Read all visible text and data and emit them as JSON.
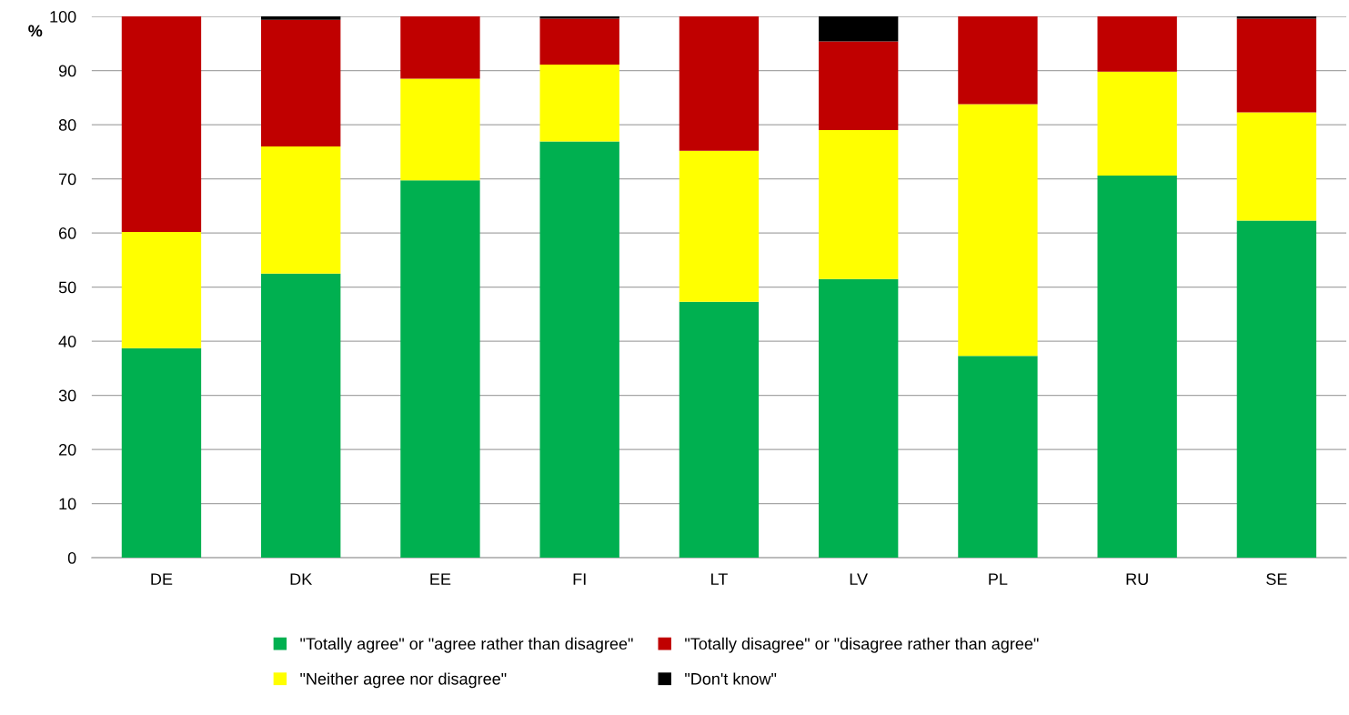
{
  "chart_data": {
    "type": "bar",
    "stacked": true,
    "ylabel": "%",
    "categories": [
      "DE",
      "DK",
      "EE",
      "FI",
      "LT",
      "LV",
      "PL",
      "RU",
      "SE"
    ],
    "series": [
      {
        "name": "\"Totally agree\" or \"agree rather than disagree\"",
        "color": "#00b050",
        "values": [
          38.7,
          52.5,
          69.7,
          76.9,
          47.3,
          51.5,
          37.3,
          70.6,
          62.3
        ]
      },
      {
        "name": "\"Neither agree nor disagree\"",
        "color": "#ffff00",
        "values": [
          21.5,
          23.5,
          18.8,
          14.2,
          27.9,
          27.5,
          46.5,
          19.2,
          20.0
        ]
      },
      {
        "name": "\"Totally disagree\" or \"disagree rather than agree\"",
        "color": "#c00000",
        "values": [
          39.8,
          23.4,
          11.5,
          8.5,
          24.8,
          16.4,
          16.2,
          10.2,
          17.3
        ]
      },
      {
        "name": "\"Don't know\"",
        "color": "#000000",
        "values": [
          0,
          0.6,
          0,
          0.4,
          0,
          4.6,
          0,
          0,
          0.4
        ]
      }
    ],
    "ylim": [
      0,
      100
    ],
    "yticks": [
      0,
      10,
      20,
      30,
      40,
      50,
      60,
      70,
      80,
      90,
      100
    ],
    "grid": "y",
    "legend": "bottom"
  }
}
